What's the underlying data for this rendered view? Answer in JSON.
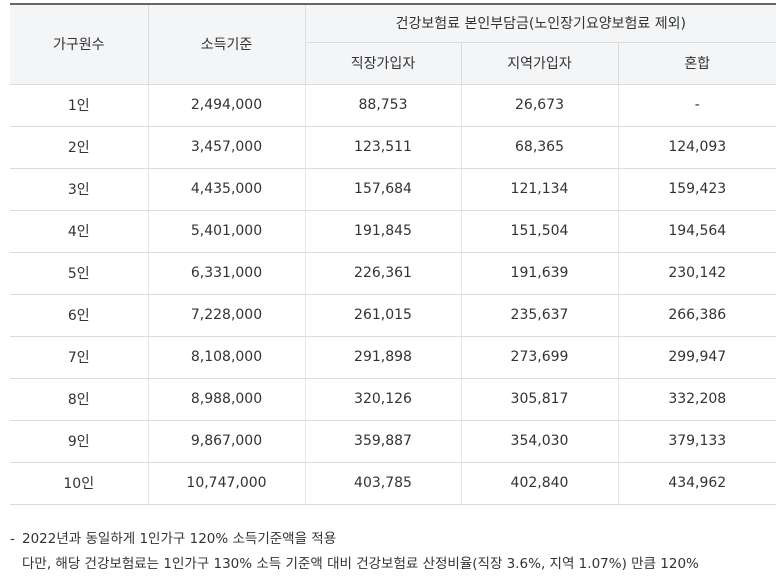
{
  "table": {
    "header": {
      "household": "가구원수",
      "income": "소득기준",
      "group": "건강보험료 본인부담금(노인장기요양보험료 제외)",
      "sub": [
        "직장가입자",
        "지역가입자",
        "혼합"
      ]
    },
    "rows": [
      [
        "1인",
        "2,494,000",
        "88,753",
        "26,673",
        "-"
      ],
      [
        "2인",
        "3,457,000",
        "123,511",
        "68,365",
        "124,093"
      ],
      [
        "3인",
        "4,435,000",
        "157,684",
        "121,134",
        "159,423"
      ],
      [
        "4인",
        "5,401,000",
        "191,845",
        "151,504",
        "194,564"
      ],
      [
        "5인",
        "6,331,000",
        "226,361",
        "191,639",
        "230,142"
      ],
      [
        "6인",
        "7,228,000",
        "261,015",
        "235,637",
        "266,386"
      ],
      [
        "7인",
        "8,108,000",
        "291,898",
        "273,699",
        "299,947"
      ],
      [
        "8인",
        "8,988,000",
        "320,126",
        "305,817",
        "332,208"
      ],
      [
        "9인",
        "9,867,000",
        "359,887",
        "354,030",
        "379,133"
      ],
      [
        "10인",
        "10,747,000",
        "403,785",
        "402,840",
        "434,962"
      ]
    ]
  },
  "notes": {
    "marker": "-",
    "lines": [
      "2022년과 동일하게 1인가구 120% 소득기준액을 적용",
      "다만, 해당 건강보험료는 1인가구 130% 소득 기준액 대비 건강보험료 산정비율(직장 3.6%, 지역 1.07%) 만큼 120%"
    ]
  }
}
